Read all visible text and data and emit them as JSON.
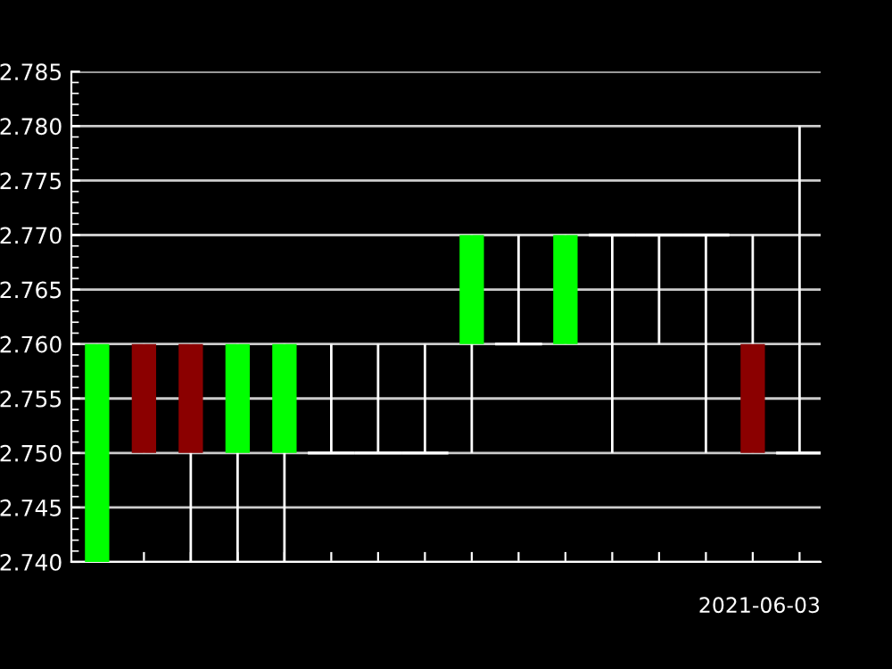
{
  "chart_data": {
    "type": "candlestick",
    "categories": [
      null,
      null,
      null,
      null,
      null,
      null,
      null,
      null,
      null,
      null,
      null,
      null,
      null,
      null,
      null,
      null
    ],
    "ohlc": [
      [
        2.74,
        2.76,
        2.74,
        2.76
      ],
      [
        2.76,
        2.76,
        2.75,
        2.75
      ],
      [
        2.76,
        2.76,
        2.74,
        2.75
      ],
      [
        2.75,
        2.76,
        2.74,
        2.76
      ],
      [
        2.75,
        2.76,
        2.74,
        2.76
      ],
      [
        2.75,
        2.76,
        2.75,
        2.75
      ],
      [
        2.75,
        2.76,
        2.75,
        2.75
      ],
      [
        2.75,
        2.76,
        2.75,
        2.75
      ],
      [
        2.76,
        2.77,
        2.75,
        2.77
      ],
      [
        2.76,
        2.77,
        2.76,
        2.76
      ],
      [
        2.76,
        2.77,
        2.76,
        2.77
      ],
      [
        2.77,
        2.77,
        2.75,
        2.77
      ],
      [
        2.77,
        2.77,
        2.76,
        2.77
      ],
      [
        2.77,
        2.77,
        2.75,
        2.77
      ],
      [
        2.76,
        2.77,
        2.75,
        2.75
      ],
      [
        2.75,
        2.78,
        2.75,
        2.75
      ]
    ],
    "colors": [
      "#00ff00",
      "#8b0000",
      "#8b0000",
      "#00ff00",
      "#00ff00",
      "#ffffff",
      "#ffffff",
      "#ffffff",
      "#00ff00",
      "#ffffff",
      "#00ff00",
      "#ffffff",
      "#ffffff",
      "#ffffff",
      "#8b0000",
      "#ffffff"
    ],
    "xlabel": "2021-06-03",
    "ylim": [
      2.74,
      2.785
    ],
    "yticks": [
      {
        "value": 2.74,
        "label": "2.740"
      },
      2.745,
      {
        "value": 2.75,
        "label": "2.750"
      },
      2.755,
      {
        "value": 2.76,
        "label": "2.760"
      },
      2.765,
      {
        "value": 2.77,
        "label": "2.770"
      },
      2.775,
      {
        "value": 2.78,
        "label": "2.780"
      },
      2.785
    ],
    "grid": "y",
    "tick_labels": "y"
  }
}
